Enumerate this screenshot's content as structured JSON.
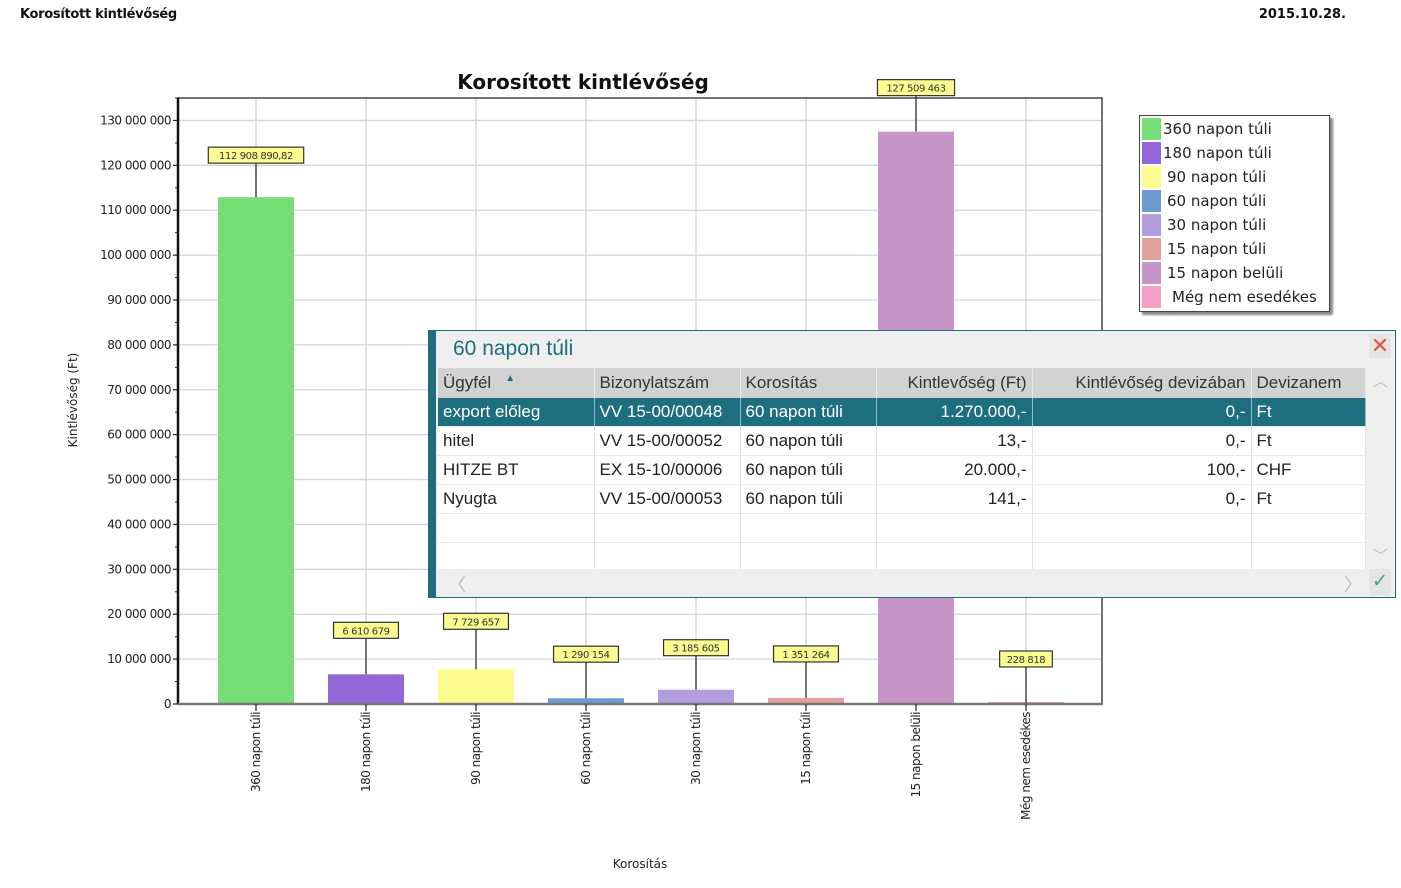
{
  "page": {
    "title": "Korosított kintlévőség",
    "date": "2015.10.28."
  },
  "chart_data": {
    "type": "bar",
    "title": "Korosított kintlévőség",
    "xlabel": "Korosítás",
    "ylabel": "Kintlévőség (Ft)",
    "ylim": [
      0,
      135000000
    ],
    "yticks": [
      0,
      10000000,
      20000000,
      30000000,
      40000000,
      50000000,
      60000000,
      70000000,
      80000000,
      90000000,
      100000000,
      110000000,
      120000000,
      130000000
    ],
    "ytick_labels": [
      "0",
      "10 000 000",
      "20 000 000",
      "30 000 000",
      "40 000 000",
      "50 000 000",
      "60 000 000",
      "70 000 000",
      "80 000 000",
      "90 000 000",
      "100 000 000",
      "110 000 000",
      "120 000 000",
      "130 000 000"
    ],
    "grid": true,
    "legend_position": "right",
    "categories": [
      "360 napon túli",
      "180 napon túli",
      "90 napon túli",
      "60 napon túli",
      "30 napon túli",
      "15 napon túli",
      "15 napon belüli",
      "Még nem esedékes"
    ],
    "values": [
      112908890.82,
      6610679,
      7729657,
      1290154,
      3185605,
      1351264,
      127509463,
      228818
    ],
    "data_labels": [
      "112 908 890,82",
      "6 610 679",
      "7 729 657",
      "1 290 154",
      "3 185 605",
      "1 351 264",
      "127 509 463",
      "228 818"
    ],
    "colors": [
      "#77dd77",
      "#9467d8",
      "#fbfb8f",
      "#6d9bcf",
      "#b39ddf",
      "#e0a09c",
      "#c895c8",
      "#f59ec6"
    ],
    "legend": [
      "360 napon túli",
      "180 napon túli",
      "90 napon túli",
      "60 napon túli",
      "30 napon túli",
      "15 napon túli",
      "15 napon belüli",
      "Még nem esedékes"
    ]
  },
  "popup": {
    "title": "60 napon túli",
    "close_icon": "close-icon",
    "ok_icon": "check-icon",
    "columns": [
      "Ügyfél",
      "Bizonylatszám",
      "Korosítás",
      "Kintlevőség (Ft)",
      "Kintlévőség devizában",
      "Devizanem"
    ],
    "sort_column": "Ügyfél",
    "rows": [
      {
        "ugyfel": "export előleg",
        "bizonylat": "VV 15-00/00048",
        "korositas": "60 napon túli",
        "kintlevoseg": "1.270.000,-",
        "deviza_osszeg": "0,-",
        "devizanem": "Ft",
        "selected": true
      },
      {
        "ugyfel": "hitel",
        "bizonylat": "VV 15-00/00052",
        "korositas": "60 napon túli",
        "kintlevoseg": "13,-",
        "deviza_osszeg": "0,-",
        "devizanem": "Ft"
      },
      {
        "ugyfel": "HITZE BT",
        "bizonylat": "EX 15-10/00006",
        "korositas": "60 napon túli",
        "kintlevoseg": "20.000,-",
        "deviza_osszeg": "100,-",
        "devizanem": "CHF"
      },
      {
        "ugyfel": "Nyugta",
        "bizonylat": "VV 15-00/00053",
        "korositas": "60 napon túli",
        "kintlevoseg": "141,-",
        "deviza_osszeg": "0,-",
        "devizanem": "Ft"
      }
    ],
    "accent_color": "#1d6e7e"
  }
}
